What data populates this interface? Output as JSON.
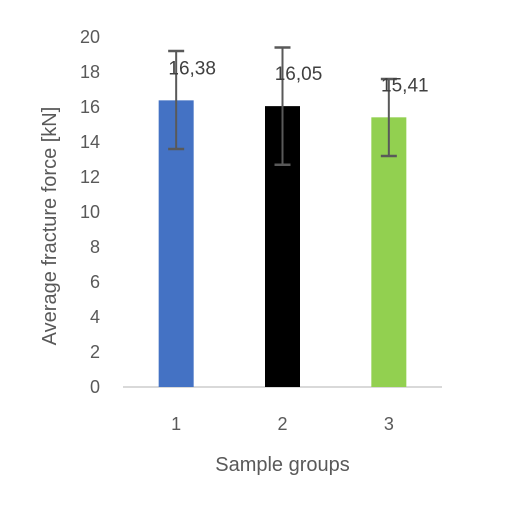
{
  "chart_data": {
    "type": "bar",
    "categories": [
      "1",
      "2",
      "3"
    ],
    "values": [
      16.38,
      16.05,
      15.41
    ],
    "value_labels": [
      "16,38",
      "16,05",
      "15,41"
    ],
    "error_bars": [
      {
        "low": 13.6,
        "high": 19.2
      },
      {
        "low": 12.7,
        "high": 19.4
      },
      {
        "low": 13.2,
        "high": 17.6
      }
    ],
    "colors": [
      "#4472C4",
      "#000000",
      "#92D050"
    ],
    "error_bar_color": "#595959",
    "title": "",
    "xlabel": "Sample groups",
    "ylabel": "Average fracture force [kN]",
    "ylim": [
      0,
      20
    ],
    "yticks": [
      "0",
      "2",
      "4",
      "6",
      "8",
      "10",
      "12",
      "14",
      "16",
      "18",
      "20"
    ],
    "grid": false,
    "legend": "none"
  }
}
